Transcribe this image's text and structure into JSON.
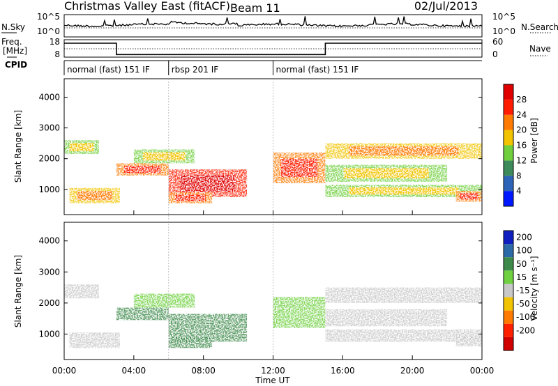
{
  "header": {
    "title": "Christmas Valley East (fitACF)",
    "beam": "Beam 11",
    "date": "02/Jul/2013"
  },
  "nsky_panel": {
    "left_label": "N.Sky",
    "right_label": "N.Search",
    "left_ticks": [
      "10^5",
      "10^0"
    ],
    "right_ticks": [
      "10^5",
      "10^0"
    ]
  },
  "freq_panel": {
    "left_label_line1": "Freq.",
    "left_label_line2": "[MHz]",
    "right_label": "Nave",
    "left_ticks": [
      "18",
      "8"
    ],
    "right_ticks": [
      "60",
      "0"
    ],
    "freq_steps": [
      {
        "from_h": 0.0,
        "to_h": 3.0,
        "value": 16.0
      },
      {
        "from_h": 3.0,
        "to_h": 15.0,
        "value": 9.5
      },
      {
        "from_h": 15.0,
        "to_h": 24.0,
        "value": 16.0
      }
    ]
  },
  "cpid": {
    "label": "CPID",
    "segments": [
      {
        "start_h": 0.0,
        "end_h": 6.0,
        "text": "normal (fast) 151 IF"
      },
      {
        "start_h": 6.0,
        "end_h": 12.0,
        "text": "rbsp 201 IF"
      },
      {
        "start_h": 12.0,
        "end_h": 24.0,
        "text": "normal (fast) 151 IF"
      }
    ]
  },
  "x_axis": {
    "label": "Time UT",
    "ticks": [
      "00:00",
      "04:00",
      "08:00",
      "12:00",
      "16:00",
      "20:00",
      "00:00"
    ]
  },
  "power_panel": {
    "ylabel": "Slant Range [km]",
    "yticks": [
      "1000",
      "2000",
      "3000",
      "4000"
    ],
    "cbar_label": "Power [dB]",
    "cbar_ticks": [
      "4",
      "8",
      "12",
      "16",
      "20",
      "24",
      "28"
    ],
    "colors": [
      "#0018ff",
      "#2d64b8",
      "#3d8a5a",
      "#6fcf3c",
      "#f2c400",
      "#ff7a00",
      "#ff1c00",
      "#e00000"
    ]
  },
  "velocity_panel": {
    "ylabel": "Slant Range [km]",
    "yticks": [
      "1000",
      "2000",
      "3000",
      "4000"
    ],
    "cbar_label": "Velocity [m s⁻¹]",
    "cbar_ticks": [
      "200",
      "100",
      "50",
      "15",
      "-15",
      "-50",
      "-100",
      "-200"
    ],
    "colors": [
      "#1020c0",
      "#2d6aa8",
      "#3d8a4a",
      "#6fd040",
      "#c8c8c8",
      "#f2c400",
      "#ff7a00",
      "#ff2000",
      "#d00000"
    ]
  },
  "chart_data": {
    "type": "heatmap",
    "x_range_h": [
      0,
      24
    ],
    "y_range_km": [
      180,
      4600
    ],
    "regions": [
      {
        "t": [
          0.0,
          2.0
        ],
        "r": [
          2150,
          2600
        ],
        "power": 14,
        "vel": 0
      },
      {
        "t": [
          0.3,
          3.2
        ],
        "r": [
          550,
          1050
        ],
        "power": 18,
        "vel": 0
      },
      {
        "t": [
          3.0,
          6.0
        ],
        "r": [
          1450,
          1850
        ],
        "power": 20,
        "vel": 60
      },
      {
        "t": [
          4.0,
          7.5
        ],
        "r": [
          1850,
          2300
        ],
        "power": 15,
        "vel": 30
      },
      {
        "t": [
          6.0,
          10.5
        ],
        "r": [
          750,
          1650
        ],
        "power": 26,
        "vel": 55
      },
      {
        "t": [
          6.0,
          8.5
        ],
        "r": [
          550,
          900
        ],
        "power": 20,
        "vel": 80
      },
      {
        "t": [
          12.0,
          15.0
        ],
        "r": [
          1200,
          2200
        ],
        "power": 22,
        "vel": 30
      },
      {
        "t": [
          15.0,
          24.0
        ],
        "r": [
          2000,
          2500
        ],
        "power": 16,
        "vel": 0
      },
      {
        "t": [
          15.0,
          22.0
        ],
        "r": [
          1250,
          1800
        ],
        "power": 12,
        "vel": -10
      },
      {
        "t": [
          15.0,
          24.0
        ],
        "r": [
          750,
          1150
        ],
        "power": 13,
        "vel": 0
      },
      {
        "t": [
          22.5,
          24.0
        ],
        "r": [
          600,
          950
        ],
        "power": 22,
        "vel": 0
      }
    ]
  }
}
